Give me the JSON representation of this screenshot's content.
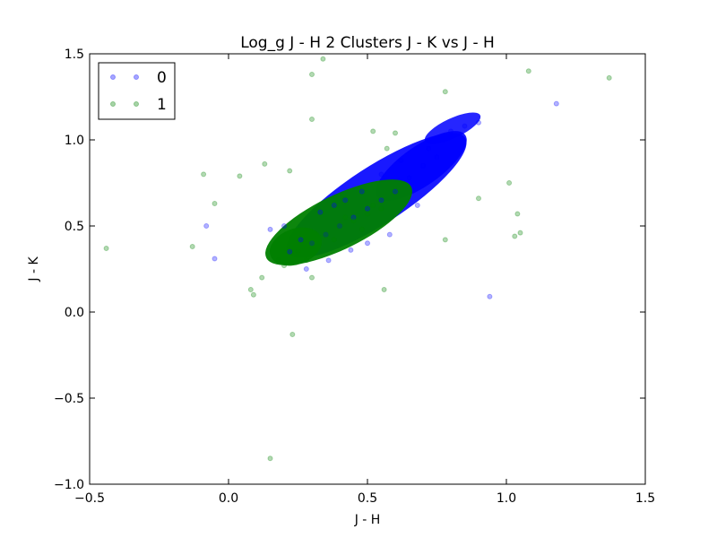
{
  "chart_data": {
    "type": "scatter",
    "title": "Log_g J - H 2 Clusters J - K vs J - H",
    "xlabel": "J - H",
    "ylabel": "J - K",
    "xlim": [
      -0.5,
      1.5
    ],
    "ylim": [
      -1.0,
      1.5
    ],
    "xticks": [
      -0.5,
      0.0,
      0.5,
      1.0,
      1.5
    ],
    "xtick_labels": [
      "−0.5",
      "0.0",
      "0.5",
      "1.0",
      "1.5"
    ],
    "yticks": [
      -1.0,
      -0.5,
      0.0,
      0.5,
      1.0,
      1.5
    ],
    "ytick_labels": [
      "−1.0",
      "−0.5",
      "0.0",
      "0.5",
      "1.0",
      "1.5"
    ],
    "grid": false,
    "legend_position": "top-left",
    "series": [
      {
        "name": "0",
        "color": "#0000ff",
        "points": [
          [
            0.3,
            0.4
          ],
          [
            0.35,
            0.45
          ],
          [
            0.4,
            0.5
          ],
          [
            0.45,
            0.55
          ],
          [
            0.5,
            0.6
          ],
          [
            0.55,
            0.65
          ],
          [
            0.6,
            0.7
          ],
          [
            0.65,
            0.78
          ],
          [
            0.7,
            0.85
          ],
          [
            0.75,
            0.9
          ],
          [
            0.8,
            1.05
          ],
          [
            0.85,
            1.08
          ],
          [
            0.9,
            1.1
          ],
          [
            0.78,
            1.02
          ],
          [
            0.72,
            0.95
          ],
          [
            0.48,
            0.7
          ],
          [
            0.42,
            0.65
          ],
          [
            0.55,
            0.8
          ],
          [
            0.62,
            0.88
          ],
          [
            0.36,
            0.3
          ],
          [
            0.28,
            0.25
          ],
          [
            0.22,
            0.35
          ],
          [
            0.2,
            0.5
          ],
          [
            0.15,
            0.48
          ],
          [
            -0.08,
            0.5
          ],
          [
            -0.05,
            0.31
          ],
          [
            0.94,
            0.09
          ],
          [
            1.18,
            1.21
          ],
          [
            0.26,
            0.42
          ],
          [
            0.68,
            0.62
          ],
          [
            0.58,
            0.45
          ],
          [
            0.5,
            0.4
          ],
          [
            0.44,
            0.36
          ],
          [
            0.38,
            0.62
          ],
          [
            0.33,
            0.58
          ]
        ]
      },
      {
        "name": "1",
        "color": "#008000",
        "points": [
          [
            0.25,
            0.35
          ],
          [
            0.3,
            0.4
          ],
          [
            0.35,
            0.45
          ],
          [
            0.4,
            0.5
          ],
          [
            0.45,
            0.53
          ],
          [
            0.5,
            0.57
          ],
          [
            0.55,
            0.6
          ],
          [
            0.28,
            0.3
          ],
          [
            0.2,
            0.27
          ],
          [
            0.18,
            0.3
          ],
          [
            0.38,
            0.42
          ],
          [
            0.48,
            0.48
          ],
          [
            0.42,
            0.55
          ],
          [
            0.52,
            0.62
          ],
          [
            -0.44,
            0.37
          ],
          [
            -0.13,
            0.38
          ],
          [
            -0.09,
            0.8
          ],
          [
            -0.05,
            0.63
          ],
          [
            0.04,
            0.79
          ],
          [
            0.08,
            0.13
          ],
          [
            0.09,
            0.1
          ],
          [
            0.13,
            0.86
          ],
          [
            0.22,
            0.82
          ],
          [
            0.23,
            -0.13
          ],
          [
            0.15,
            -0.85
          ],
          [
            0.3,
            1.12
          ],
          [
            0.3,
            1.38
          ],
          [
            0.34,
            1.47
          ],
          [
            0.52,
            1.05
          ],
          [
            0.56,
            0.13
          ],
          [
            0.78,
            1.28
          ],
          [
            0.78,
            0.42
          ],
          [
            0.9,
            0.66
          ],
          [
            1.01,
            0.75
          ],
          [
            1.03,
            0.44
          ],
          [
            1.05,
            0.46
          ],
          [
            1.04,
            0.57
          ],
          [
            1.08,
            1.4
          ],
          [
            1.37,
            1.36
          ],
          [
            0.57,
            0.95
          ],
          [
            0.6,
            1.04
          ],
          [
            0.12,
            0.2
          ],
          [
            0.3,
            0.2
          ]
        ]
      }
    ]
  }
}
